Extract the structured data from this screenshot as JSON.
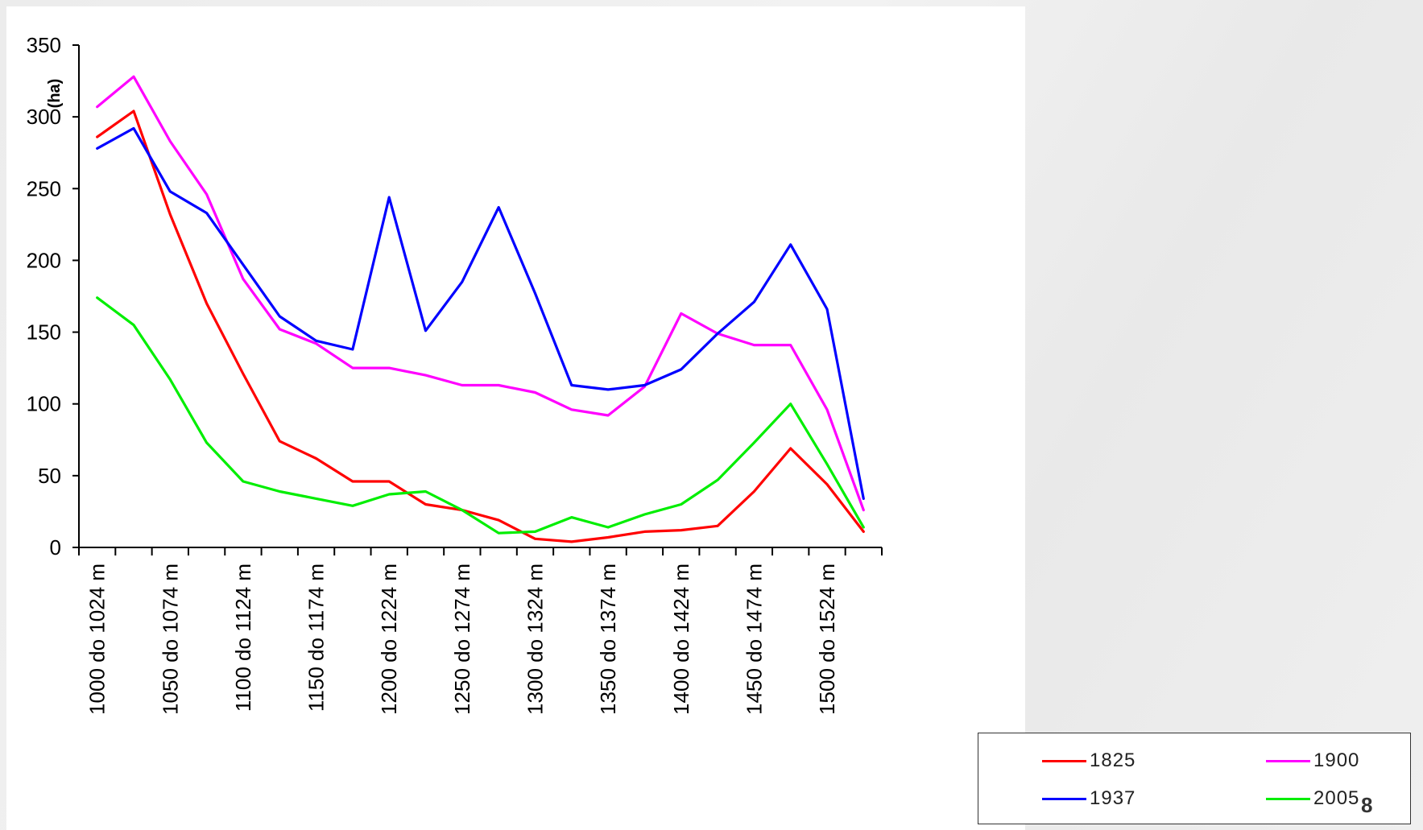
{
  "chart_data": {
    "type": "line",
    "title": "",
    "xlabel": "",
    "ylabel": "(ha)",
    "ylim": [
      0,
      350
    ],
    "yticks": [
      0,
      50,
      100,
      150,
      200,
      250,
      300,
      350
    ],
    "grid": false,
    "legend_position": "bottom-right",
    "x_category_count": 22,
    "x_tick_labels": [
      {
        "index": 0,
        "label": "1000 do 1024 m"
      },
      {
        "index": 2,
        "label": "1050 do 1074 m"
      },
      {
        "index": 4,
        "label": "1100 do 1124 m"
      },
      {
        "index": 6,
        "label": "1150 do 1174 m"
      },
      {
        "index": 8,
        "label": "1200 do 1224 m"
      },
      {
        "index": 10,
        "label": "1250 do 1274 m"
      },
      {
        "index": 12,
        "label": "1300 do 1324 m"
      },
      {
        "index": 14,
        "label": "1350 do 1374 m"
      },
      {
        "index": 16,
        "label": "1400 do 1424 m"
      },
      {
        "index": 18,
        "label": "1450 do 1474 m"
      },
      {
        "index": 20,
        "label": "1500 do 1524 m"
      }
    ],
    "series": [
      {
        "name": "1825",
        "color": "#ff0000",
        "values": [
          286,
          304,
          232,
          170,
          121,
          74,
          62,
          46,
          46,
          30,
          26,
          19,
          6,
          4,
          7,
          11,
          12,
          15,
          39,
          69,
          44,
          11
        ]
      },
      {
        "name": "1900",
        "color": "#ff00ff",
        "values": [
          307,
          328,
          283,
          246,
          187,
          152,
          142,
          125,
          125,
          120,
          113,
          113,
          108,
          96,
          92,
          112,
          163,
          149,
          141,
          141,
          96,
          26
        ]
      },
      {
        "name": "1937",
        "color": "#0000ff",
        "values": [
          278,
          292,
          248,
          233,
          197,
          161,
          144,
          138,
          244,
          151,
          185,
          237,
          177,
          113,
          110,
          113,
          124,
          149,
          171,
          211,
          166,
          34
        ]
      },
      {
        "name": "2005",
        "color": "#00ee00",
        "values": [
          174,
          155,
          117,
          73,
          46,
          39,
          34,
          29,
          37,
          39,
          26,
          10,
          11,
          21,
          14,
          23,
          30,
          47,
          73,
          100,
          58,
          14
        ]
      }
    ]
  },
  "legend": [
    {
      "label": "1825",
      "color": "#ff0000"
    },
    {
      "label": "1900",
      "color": "#ff00ff"
    },
    {
      "label": "1937",
      "color": "#0000ff"
    },
    {
      "label": "2005",
      "color": "#00ee00"
    }
  ],
  "slide_number": "8"
}
